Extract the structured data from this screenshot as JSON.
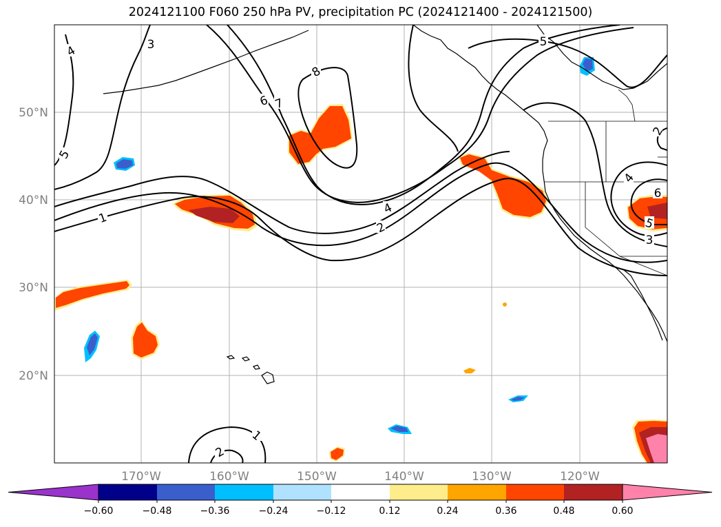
{
  "title": "2024121100 F060 250 hPa PV, precipitation PC (2024121400 - 2024121500)",
  "map": {
    "lat_labels": [
      "50°N",
      "40°N",
      "30°N",
      "20°N"
    ],
    "lon_labels": [
      "170°W",
      "160°W",
      "150°W",
      "140°W",
      "130°W",
      "120°W"
    ]
  },
  "contour_labels": [
    "4",
    "3",
    "8",
    "6",
    "7",
    "5",
    "5",
    "4",
    "2",
    "1",
    "4",
    "6",
    "5",
    "3",
    "2",
    "1",
    "2"
  ],
  "colorbar": {
    "tick_labels": [
      "−0.60",
      "−0.48",
      "−0.36",
      "−0.24",
      "−0.12",
      "0.12",
      "0.24",
      "0.36",
      "0.48",
      "0.60"
    ],
    "colors": [
      "#9933cc",
      "#00008b",
      "#3a5fcd",
      "#00bfff",
      "#b0e2ff",
      "#ffffff",
      "#ffec8b",
      "#ffa500",
      "#ff4500",
      "#b22222",
      "#ff82ab"
    ]
  },
  "colors": {
    "contour": "#000000",
    "coastline": "#000000",
    "grid": "#b0b0b0"
  }
}
